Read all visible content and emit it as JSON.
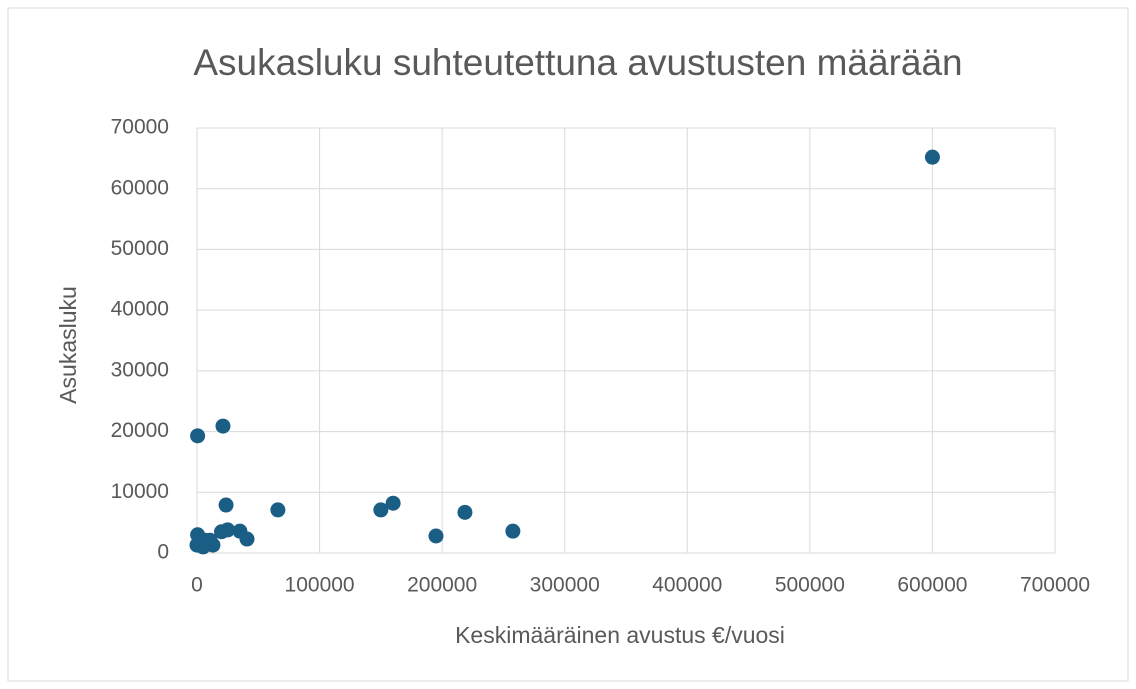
{
  "chart_data": {
    "type": "scatter",
    "title": "Asukasluku suhteutettuna avustusten määrään",
    "x_label": "Keskimääräinen avustus €/vuosi",
    "y_label": "Asukasluku",
    "color": "#1b5e85",
    "grid": true,
    "xlim": [
      0,
      700000
    ],
    "xticks": [
      0,
      100000,
      200000,
      300000,
      400000,
      500000,
      600000,
      700000
    ],
    "ylim": [
      0,
      70000
    ],
    "yticks": [
      0,
      10000,
      20000,
      30000,
      40000,
      50000,
      60000,
      70000
    ],
    "x": [
      600000,
      500,
      21200,
      23700,
      66000,
      150000,
      160000,
      218600,
      195000,
      257700,
      40800,
      35000,
      25000,
      20000,
      500,
      0,
      5000,
      6500,
      13000,
      10600
    ],
    "values": [
      65200,
      19300,
      20900,
      7900,
      7100,
      7100,
      8200,
      6700,
      2800,
      3600,
      2300,
      3600,
      3800,
      3500,
      3000,
      1300,
      1000,
      2100,
      1300,
      2100
    ]
  }
}
